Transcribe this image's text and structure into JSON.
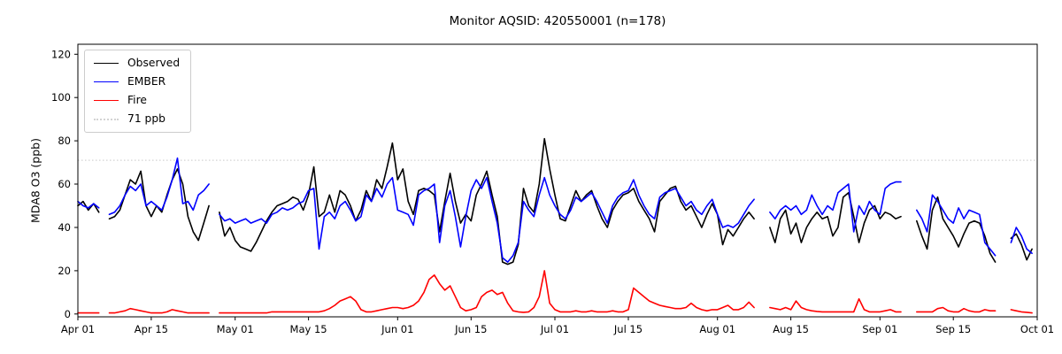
{
  "chart_data": {
    "type": "line",
    "title": "Monitor AQSID: 420550001 (n=178)",
    "ylabel": "MDA8 O3 (ppb)",
    "xlabel": "",
    "grid": false,
    "legend_position": "upper left",
    "ylim": [
      0,
      120
    ],
    "y_ticks": [
      0,
      20,
      40,
      60,
      80,
      100,
      120
    ],
    "x_domain_days": 183,
    "x_ticks": [
      {
        "label": "Apr 01",
        "day": 0
      },
      {
        "label": "Apr 15",
        "day": 14
      },
      {
        "label": "May 01",
        "day": 30
      },
      {
        "label": "May 15",
        "day": 44
      },
      {
        "label": "Jun 01",
        "day": 61
      },
      {
        "label": "Jun 15",
        "day": 75
      },
      {
        "label": "Jul 01",
        "day": 91
      },
      {
        "label": "Jul 15",
        "day": 105
      },
      {
        "label": "Aug 01",
        "day": 122
      },
      {
        "label": "Aug 15",
        "day": 136
      },
      {
        "label": "Sep 01",
        "day": 153
      },
      {
        "label": "Sep 15",
        "day": 167
      },
      {
        "label": "Oct 01",
        "day": 183
      }
    ],
    "threshold": {
      "label": "71 ppb",
      "value": 71,
      "color": "#d3d3d3",
      "style": "dotted"
    },
    "series": [
      {
        "name": "Observed",
        "color": "#000000",
        "values": [
          50,
          52,
          48,
          51,
          47,
          null,
          44,
          45,
          48,
          55,
          62,
          60,
          66,
          50,
          45,
          50,
          47,
          55,
          62,
          67,
          60,
          45,
          38,
          34,
          42,
          50,
          null,
          47,
          36,
          40,
          34,
          31,
          30,
          29,
          33,
          38,
          43,
          47,
          50,
          51,
          52,
          54,
          53,
          48,
          55,
          68,
          45,
          47,
          55,
          47,
          57,
          55,
          50,
          43,
          48,
          57,
          52,
          62,
          58,
          68,
          79,
          62,
          67,
          52,
          46,
          57,
          58,
          57,
          55,
          38,
          52,
          65,
          52,
          42,
          46,
          43,
          55,
          60,
          66,
          55,
          45,
          24,
          23,
          24,
          32,
          58,
          50,
          47,
          60,
          81,
          67,
          55,
          44,
          43,
          50,
          57,
          52,
          55,
          57,
          50,
          44,
          40,
          48,
          52,
          55,
          56,
          58,
          52,
          48,
          44,
          38,
          52,
          55,
          58,
          59,
          52,
          48,
          50,
          45,
          40,
          46,
          51,
          46,
          32,
          39,
          36,
          40,
          44,
          47,
          44,
          null,
          null,
          40,
          33,
          44,
          48,
          37,
          42,
          33,
          40,
          44,
          47,
          44,
          45,
          36,
          40,
          54,
          56,
          45,
          33,
          42,
          48,
          50,
          44,
          47,
          46,
          44,
          45,
          null,
          null,
          43,
          36,
          30,
          48,
          54,
          44,
          40,
          36,
          31,
          37,
          42,
          43,
          42,
          36,
          28,
          24,
          null,
          null,
          35,
          37,
          32,
          25,
          30
        ]
      },
      {
        "name": "EMBER",
        "color": "#0000ff",
        "values": [
          52,
          50,
          49,
          51,
          49,
          null,
          46,
          47,
          50,
          55,
          59,
          57,
          60,
          50,
          52,
          50,
          48,
          54,
          62,
          72,
          51,
          52,
          48,
          55,
          57,
          60,
          null,
          46,
          43,
          44,
          42,
          43,
          44,
          42,
          43,
          44,
          42,
          46,
          47,
          49,
          48,
          49,
          51,
          52,
          57,
          58,
          30,
          45,
          47,
          44,
          50,
          52,
          48,
          43,
          45,
          55,
          52,
          58,
          54,
          60,
          63,
          48,
          47,
          46,
          41,
          55,
          57,
          58,
          60,
          33,
          50,
          57,
          45,
          31,
          45,
          57,
          62,
          58,
          63,
          52,
          42,
          26,
          24,
          27,
          33,
          52,
          48,
          45,
          55,
          63,
          55,
          50,
          46,
          44,
          48,
          54,
          52,
          54,
          56,
          52,
          47,
          42,
          50,
          54,
          56,
          57,
          62,
          55,
          50,
          46,
          44,
          54,
          56,
          57,
          58,
          54,
          50,
          52,
          48,
          46,
          50,
          53,
          46,
          40,
          41,
          40,
          42,
          46,
          50,
          53,
          null,
          null,
          47,
          44,
          48,
          50,
          48,
          50,
          46,
          48,
          55,
          50,
          46,
          50,
          48,
          56,
          58,
          60,
          38,
          50,
          46,
          52,
          48,
          46,
          58,
          60,
          61,
          61,
          null,
          null,
          48,
          44,
          38,
          55,
          52,
          48,
          44,
          42,
          49,
          44,
          48,
          47,
          46,
          33,
          30,
          27,
          null,
          null,
          33,
          40,
          36,
          30,
          28
        ]
      },
      {
        "name": "Fire",
        "color": "#ff0000",
        "values": [
          0.5,
          0.5,
          0.5,
          0.5,
          0.5,
          null,
          0.5,
          0.5,
          1,
          1.5,
          2.5,
          2,
          1.5,
          1,
          0.5,
          0.5,
          0.5,
          1,
          2,
          1.5,
          1,
          0.5,
          0.5,
          0.5,
          0.5,
          0.5,
          null,
          0.5,
          0.5,
          0.5,
          0.5,
          0.5,
          0.5,
          0.5,
          0.5,
          0.5,
          0.5,
          1,
          1,
          1,
          1,
          1,
          1,
          1,
          1,
          1,
          1,
          1.5,
          2.5,
          4,
          6,
          7,
          8,
          6,
          2,
          1,
          1,
          1.5,
          2,
          2.5,
          3,
          3,
          2.5,
          3,
          4,
          6,
          10,
          16,
          18,
          14,
          11,
          13,
          8,
          3,
          1.5,
          2,
          3,
          8,
          10,
          11,
          9,
          10,
          5,
          1.5,
          1,
          0.8,
          1,
          3,
          8,
          20,
          5,
          2,
          1,
          1,
          1,
          1.5,
          1,
          1,
          1.5,
          1,
          1,
          1,
          1.5,
          1,
          1,
          2,
          12,
          10,
          8,
          6,
          5,
          4,
          3.5,
          3,
          2.5,
          2.5,
          3,
          5,
          3,
          2,
          1.5,
          2,
          2,
          3,
          4,
          2,
          2,
          3,
          5.5,
          3,
          null,
          null,
          3,
          2.5,
          2,
          3,
          2,
          6,
          3,
          2,
          1.5,
          1.2,
          1,
          1,
          1,
          1,
          1,
          1,
          1,
          7,
          2,
          1,
          1,
          1,
          1.5,
          2,
          1,
          1,
          null,
          null,
          1,
          1,
          1,
          1,
          2.5,
          3,
          1.5,
          1,
          1,
          2.5,
          1.5,
          1,
          1,
          2,
          1.5,
          1.5,
          null,
          null,
          2,
          1.5,
          1,
          0.8,
          0.5
        ]
      }
    ]
  }
}
